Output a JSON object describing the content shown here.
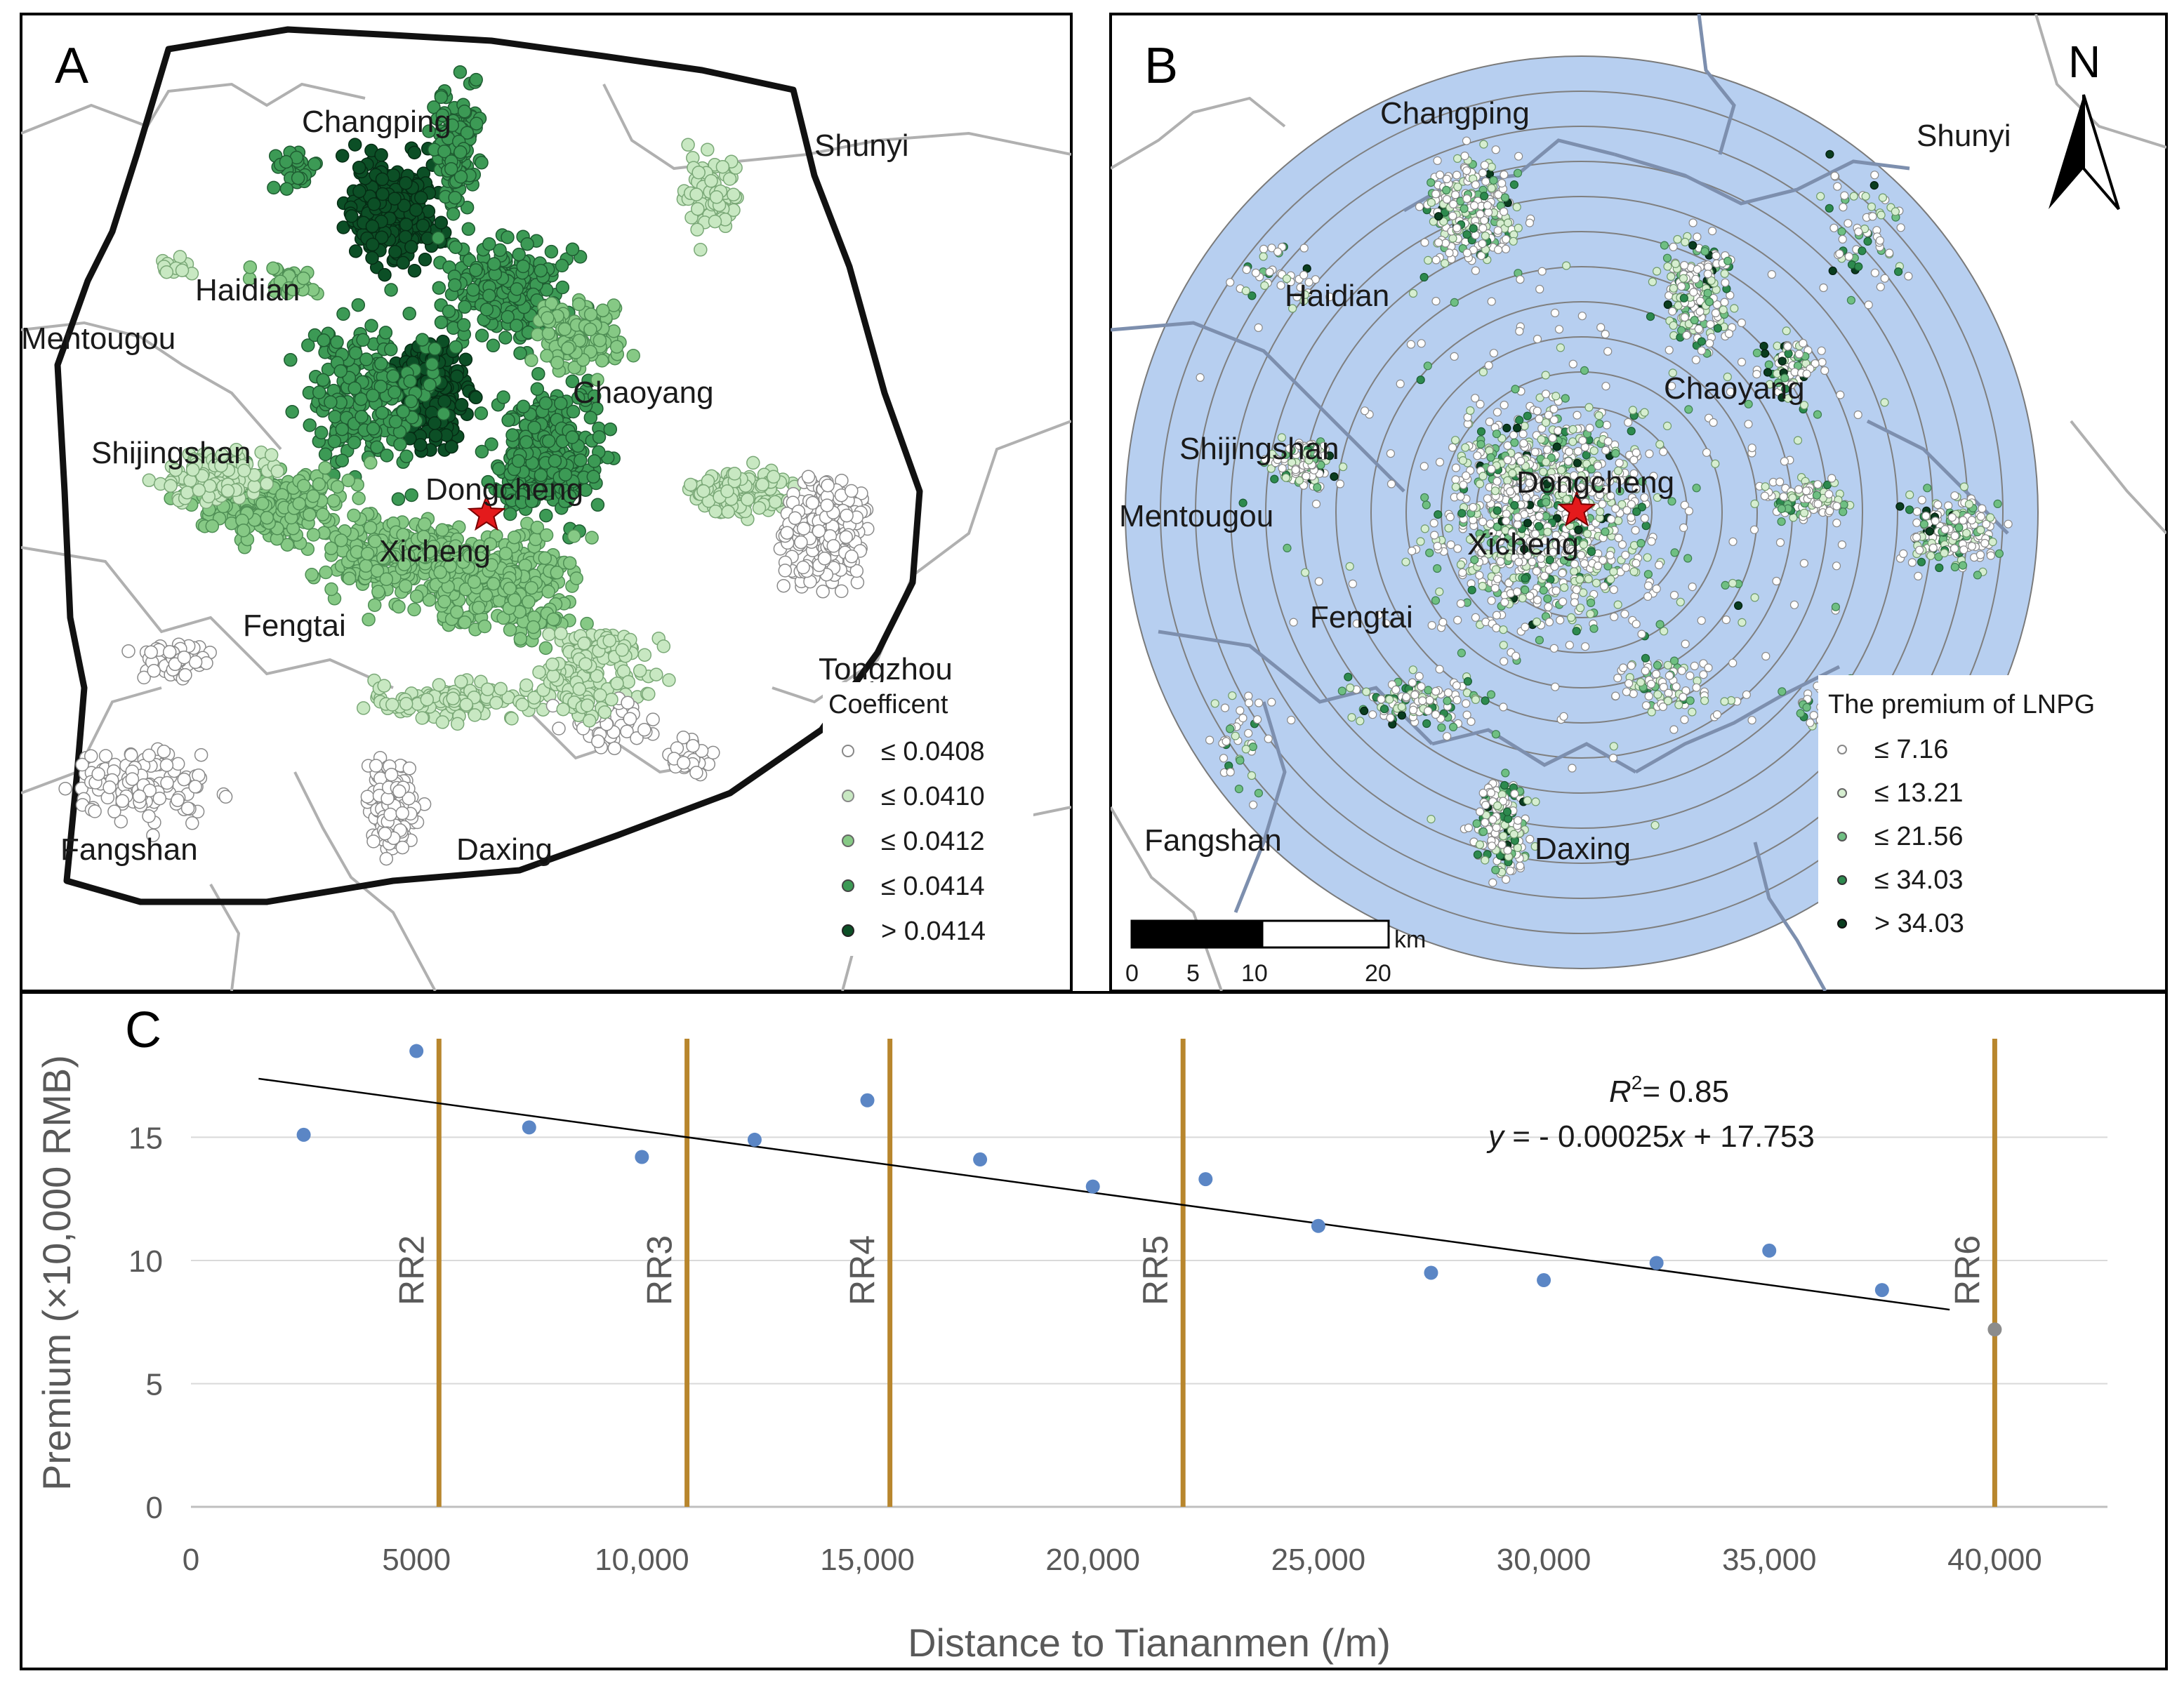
{
  "panels": {
    "a": {
      "letter": "A",
      "places": [
        "Changping",
        "Shunyi",
        "Haidian",
        "Mentougou",
        "Chaoyang",
        "Shijingshan",
        "Dongcheng",
        "Xicheng",
        "Fengtai",
        "Tongzhou",
        "Fangshan",
        "Daxing"
      ],
      "legend": {
        "title": "Coefficent",
        "items": [
          "≤ 0.0408",
          "≤ 0.0410",
          "≤ 0.0412",
          "≤ 0.0414",
          "> 0.0414"
        ],
        "colors": [
          "#ffffff",
          "#c8e8c2",
          "#86c985",
          "#3c9a55",
          "#0c4f26"
        ]
      }
    },
    "b": {
      "letter": "B",
      "north": "N",
      "places": [
        "Changping",
        "Shunyi",
        "Haidian",
        "Chaoyang",
        "Shijingshan",
        "Dongcheng",
        "Mentougou",
        "Xicheng",
        "Fengtai",
        "Fangshan",
        "Daxing"
      ],
      "legend": {
        "title": "The premium of LNPG",
        "items": [
          "≤ 7.16",
          "≤ 13.21",
          "≤ 21.56",
          "≤ 34.03",
          "> 34.03"
        ],
        "colors": [
          "#ffffff",
          "#d6eed0",
          "#6fbf82",
          "#2d8a4e",
          "#0a3d1f"
        ]
      },
      "scalebar": {
        "unit": "km",
        "ticks": [
          "0",
          "5",
          "10",
          "20"
        ]
      }
    }
  },
  "chart_data": {
    "panel": "C",
    "type": "scatter",
    "xlabel": "Distance to Tiananmen (/m)",
    "ylabel": "Premium (×10,000 RMB)",
    "xlim": [
      0,
      42500
    ],
    "ylim": [
      0,
      19
    ],
    "x_ticks": [
      0,
      5000,
      10000,
      15000,
      20000,
      25000,
      30000,
      35000,
      40000
    ],
    "x_tick_labels": [
      "0",
      "5000",
      "10,000",
      "15,000",
      "20,000",
      "25,000",
      "30,000",
      "35,000",
      "40,000"
    ],
    "y_ticks": [
      0,
      5,
      10,
      15
    ],
    "y_tick_labels": [
      "0",
      "5",
      "10",
      "15"
    ],
    "series": [
      {
        "name": "Premium",
        "color": "#5b86c5",
        "x": [
          2500,
          5000,
          7500,
          10000,
          12500,
          15000,
          17500,
          20000,
          22500,
          25000,
          27500,
          30000,
          32500,
          35000,
          37500,
          40000
        ],
        "y": [
          15.1,
          18.5,
          15.4,
          14.2,
          14.9,
          16.5,
          14.1,
          13.0,
          13.3,
          11.4,
          9.5,
          9.2,
          9.9,
          10.4,
          8.8,
          7.2
        ]
      }
    ],
    "trendline": {
      "x_start": 1500,
      "x_end": 39000,
      "slope": -0.00025,
      "intercept": 17.753,
      "r2_text": "= 0.85",
      "r2_label": "R",
      "r2_sup": "2",
      "equation_lhs": "y",
      "equation_mid": " =  - 0.00025",
      "equation_x": "x",
      "equation_rhs": " + 17.753"
    },
    "ring_roads": [
      {
        "label": "RR2",
        "x": 5500
      },
      {
        "label": "RR3",
        "x": 11000
      },
      {
        "label": "RR4",
        "x": 15500
      },
      {
        "label": "RR5",
        "x": 22000
      },
      {
        "label": "RR6",
        "x": 40000
      }
    ],
    "ring_road_color": "#b8862d"
  }
}
